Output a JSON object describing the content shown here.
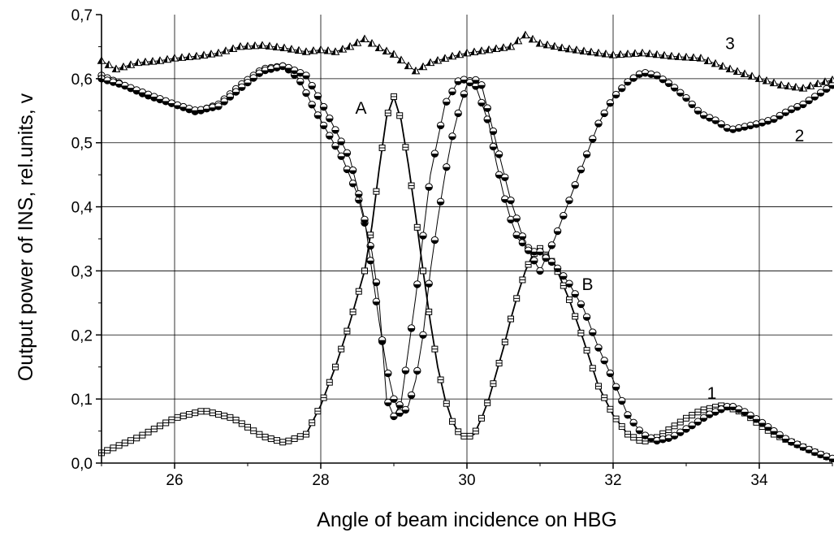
{
  "chart_data": {
    "type": "scatter",
    "xlabel": "Angle of beam incidence on HBG",
    "ylabel": "Output power of INS, rel.units, v",
    "xlim": [
      25,
      35
    ],
    "ylim": [
      0,
      0.7
    ],
    "x_ticks": [
      26,
      28,
      30,
      32,
      34
    ],
    "x_tick_labels": [
      "26",
      "28",
      "30",
      "32",
      "34"
    ],
    "y_ticks": [
      0,
      0.1,
      0.2,
      0.3,
      0.4,
      0.5,
      0.6,
      0.7
    ],
    "y_tick_labels": [
      "0,0",
      "0,1",
      "0,2",
      "0,3",
      "0,4",
      "0,5",
      "0,6",
      "0,7"
    ],
    "grid": true,
    "legend": "none",
    "series": [
      {
        "marker": "square",
        "x": [
          25.0,
          25.5,
          26.0,
          26.4,
          26.8,
          27.2,
          27.5,
          27.8,
          28.0,
          28.2,
          28.4,
          28.6,
          28.7,
          28.8,
          28.9,
          29.0,
          29.1,
          29.2,
          29.3,
          29.4,
          29.5,
          29.6,
          29.7,
          29.8,
          29.9,
          30.0,
          30.1,
          30.2,
          30.3,
          30.4,
          30.5,
          30.6,
          30.7,
          30.8,
          30.9,
          31.0,
          31.2,
          31.4,
          31.6,
          31.8,
          32.0,
          32.2,
          32.4,
          32.6,
          32.8,
          33.0,
          33.2,
          33.5,
          33.8,
          34.0,
          34.2,
          34.5,
          34.8,
          35.0
        ],
        "y": [
          0.016,
          0.04,
          0.07,
          0.082,
          0.07,
          0.042,
          0.032,
          0.045,
          0.09,
          0.15,
          0.22,
          0.3,
          0.37,
          0.46,
          0.54,
          0.572,
          0.535,
          0.465,
          0.385,
          0.3,
          0.22,
          0.15,
          0.1,
          0.065,
          0.045,
          0.04,
          0.045,
          0.07,
          0.1,
          0.14,
          0.18,
          0.225,
          0.265,
          0.3,
          0.325,
          0.335,
          0.31,
          0.255,
          0.19,
          0.12,
          0.075,
          0.045,
          0.033,
          0.04,
          0.055,
          0.07,
          0.082,
          0.09,
          0.078,
          0.06,
          0.045,
          0.03,
          0.015,
          0.007
        ],
        "label": "1"
      },
      {
        "marker": "half-filled circle",
        "x": [
          25.0,
          25.3,
          25.6,
          26.0,
          26.3,
          26.6,
          26.9,
          27.2,
          27.5,
          27.7,
          27.9,
          28.1,
          28.3,
          28.5,
          28.7,
          28.8,
          28.9,
          29.0,
          29.1,
          29.3,
          29.5,
          29.7,
          29.9,
          30.1,
          30.3,
          30.4,
          30.5,
          30.6,
          30.7,
          30.8,
          30.9,
          31.0,
          31.2,
          31.4,
          31.6,
          31.8,
          32.0,
          32.2,
          32.4,
          32.6,
          32.8,
          33.1,
          33.3,
          33.6,
          33.8,
          34.0,
          34.2,
          34.4,
          34.6,
          34.8,
          35.0
        ],
        "y": [
          0.605,
          0.59,
          0.575,
          0.56,
          0.548,
          0.56,
          0.59,
          0.615,
          0.62,
          0.6,
          0.555,
          0.515,
          0.475,
          0.42,
          0.33,
          0.25,
          0.1,
          0.073,
          0.095,
          0.26,
          0.45,
          0.56,
          0.6,
          0.595,
          0.53,
          0.47,
          0.42,
          0.38,
          0.35,
          0.34,
          0.33,
          0.33,
          0.31,
          0.28,
          0.24,
          0.18,
          0.13,
          0.075,
          0.045,
          0.035,
          0.04,
          0.06,
          0.075,
          0.09,
          0.08,
          0.066,
          0.05,
          0.035,
          0.025,
          0.015,
          0.007
        ],
        "label": "B"
      },
      {
        "marker": "half-filled circle",
        "x": [
          25.0,
          25.3,
          25.6,
          26.0,
          26.3,
          26.6,
          26.9,
          27.2,
          27.5,
          27.8,
          28.0,
          28.2,
          28.4,
          28.5,
          28.6,
          28.7,
          28.8,
          28.9,
          29.0,
          29.1,
          29.2,
          29.3,
          29.4,
          29.5,
          29.6,
          29.7,
          29.8,
          29.9,
          30.0,
          30.1,
          30.2,
          30.4,
          30.6,
          30.8,
          31.0,
          31.2,
          31.4,
          31.6,
          31.8,
          32.0,
          32.2,
          32.4,
          32.6,
          32.8,
          33.0,
          33.2,
          33.4,
          33.6,
          33.8,
          34.0,
          34.2,
          34.4,
          34.6,
          34.8,
          35.0
        ],
        "y": [
          0.6,
          0.59,
          0.577,
          0.56,
          0.55,
          0.557,
          0.585,
          0.612,
          0.62,
          0.605,
          0.565,
          0.52,
          0.475,
          0.43,
          0.38,
          0.3,
          0.22,
          0.15,
          0.1,
          0.073,
          0.09,
          0.13,
          0.2,
          0.3,
          0.38,
          0.45,
          0.51,
          0.555,
          0.59,
          0.6,
          0.59,
          0.5,
          0.41,
          0.34,
          0.3,
          0.35,
          0.41,
          0.47,
          0.53,
          0.57,
          0.595,
          0.61,
          0.605,
          0.59,
          0.57,
          0.545,
          0.535,
          0.52,
          0.525,
          0.53,
          0.537,
          0.55,
          0.56,
          0.575,
          0.59
        ],
        "label": "2"
      },
      {
        "marker": "triangle",
        "x": [
          25.0,
          25.2,
          25.5,
          25.8,
          26.0,
          26.3,
          26.6,
          26.9,
          27.2,
          27.5,
          27.8,
          28.0,
          28.2,
          28.4,
          28.6,
          28.8,
          29.0,
          29.2,
          29.3,
          29.5,
          29.8,
          30.0,
          30.3,
          30.6,
          30.8,
          31.0,
          31.3,
          31.6,
          32.0,
          32.4,
          32.8,
          33.2,
          33.6,
          34.0,
          34.3,
          34.6,
          34.8,
          35.0
        ],
        "y": [
          0.628,
          0.615,
          0.625,
          0.628,
          0.632,
          0.635,
          0.64,
          0.65,
          0.652,
          0.648,
          0.642,
          0.645,
          0.642,
          0.65,
          0.662,
          0.648,
          0.638,
          0.62,
          0.612,
          0.625,
          0.635,
          0.64,
          0.645,
          0.65,
          0.668,
          0.655,
          0.648,
          0.643,
          0.637,
          0.64,
          0.635,
          0.632,
          0.615,
          0.6,
          0.59,
          0.585,
          0.592,
          0.598
        ],
        "label": "3"
      }
    ],
    "annotations": [
      {
        "text": "A",
        "x": 28.55,
        "y": 0.545
      },
      {
        "text": "B",
        "x": 31.65,
        "y": 0.27
      },
      {
        "text": "1",
        "x": 33.35,
        "y": 0.1
      },
      {
        "text": "2",
        "x": 34.55,
        "y": 0.502
      },
      {
        "text": "3",
        "x": 33.6,
        "y": 0.646
      }
    ]
  }
}
